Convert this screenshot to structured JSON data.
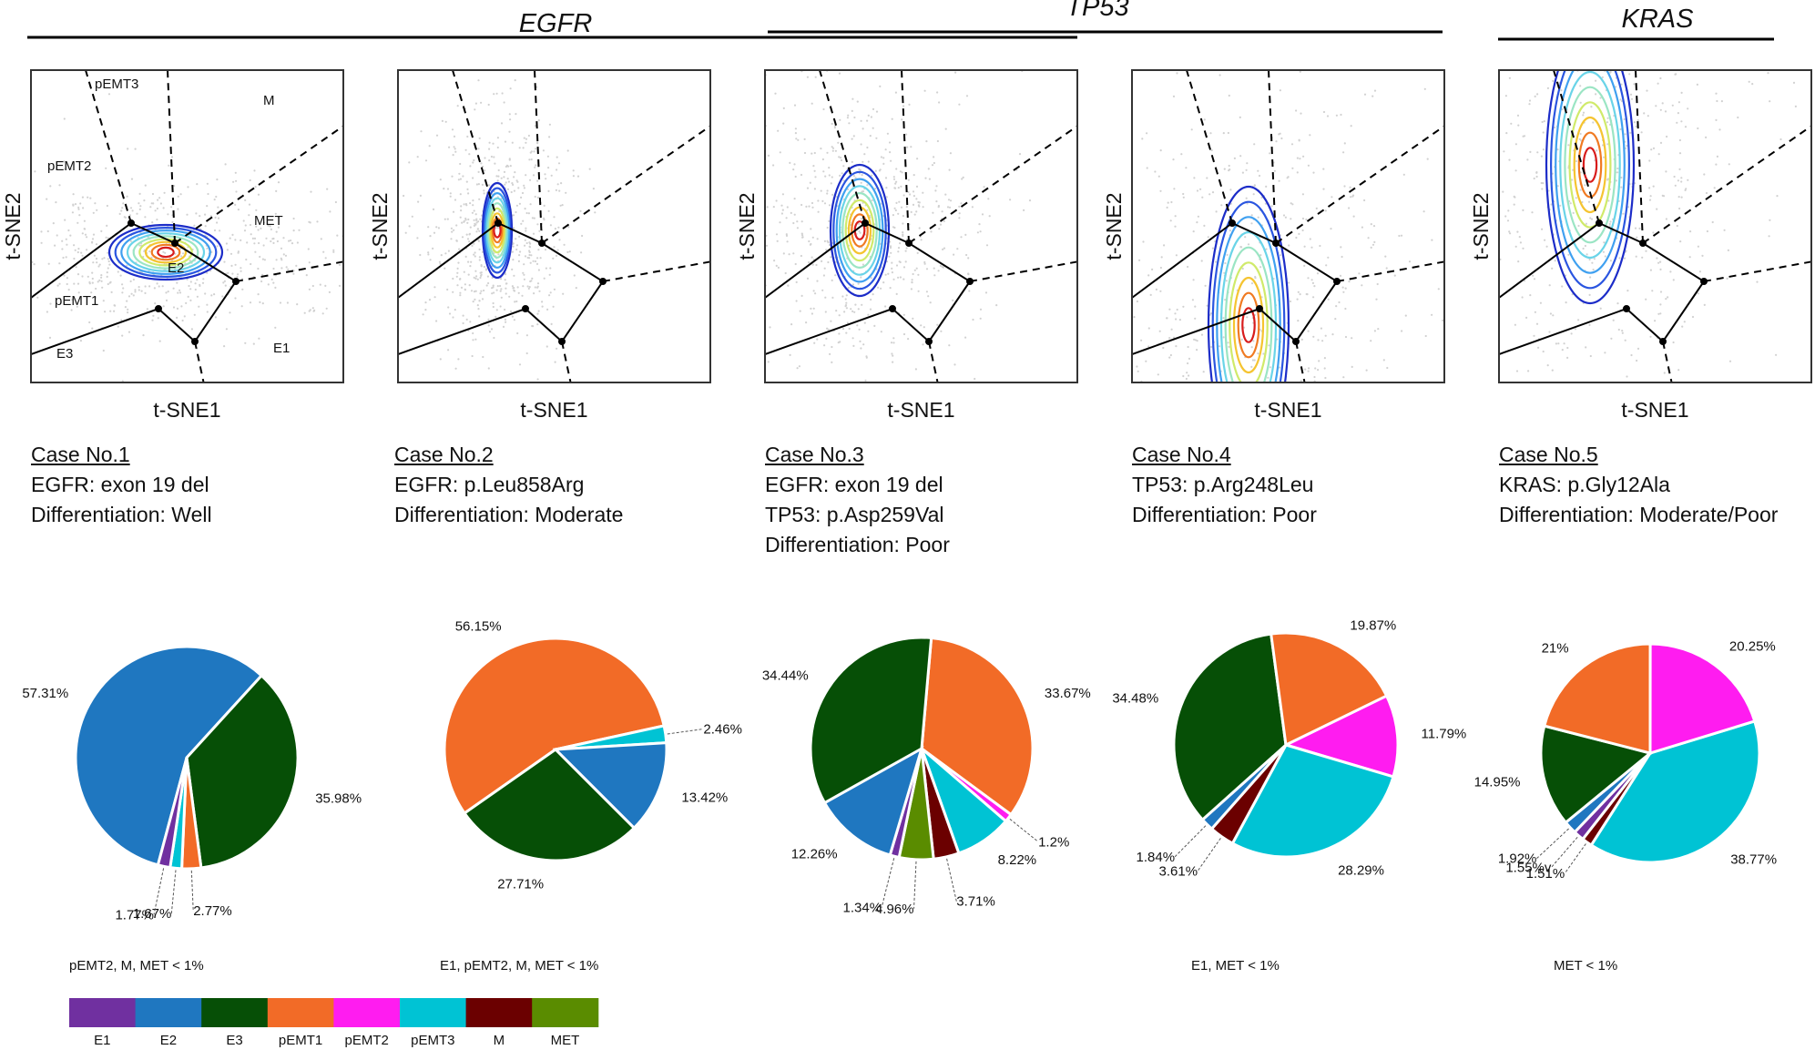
{
  "gene_groups": [
    {
      "label": "EGFR"
    },
    {
      "label": "TP53"
    },
    {
      "label": "KRAS"
    }
  ],
  "tsne_panels": [
    {
      "xlabel": "t-SNE1",
      "ylabel": "t-SNE2",
      "regions": [
        "pEMT3",
        "M",
        "pEMT2",
        "MET",
        "E2",
        "pEMT1",
        "E3",
        "E1"
      ]
    },
    {
      "xlabel": "t-SNE1",
      "ylabel": "t-SNE2"
    },
    {
      "xlabel": "t-SNE1",
      "ylabel": "t-SNE2"
    },
    {
      "xlabel": "t-SNE1",
      "ylabel": "t-SNE2"
    },
    {
      "xlabel": "t-SNE1",
      "ylabel": "t-SNE2"
    }
  ],
  "cases": [
    {
      "title": "Case No.1",
      "lines": [
        "EGFR: exon 19 del",
        "Differentiation: Well"
      ],
      "note": "pEMT2, M, MET < 1%"
    },
    {
      "title": "Case No.2",
      "lines": [
        "EGFR: p.Leu858Arg",
        "Differentiation: Moderate"
      ],
      "note": "E1, pEMT2, M, MET < 1%"
    },
    {
      "title": "Case No.3",
      "lines": [
        "EGFR: exon 19 del",
        "TP53: p.Asp259Val",
        "Differentiation: Poor"
      ],
      "note": ""
    },
    {
      "title": "Case No.4",
      "lines": [
        "TP53: p.Arg248Leu",
        "Differentiation: Poor"
      ],
      "note": "E1, MET < 1%"
    },
    {
      "title": "Case No.5",
      "lines": [
        "KRAS: p.Gly12Ala",
        "Differentiation: Moderate/Poor"
      ],
      "note": "MET < 1%"
    }
  ],
  "legend": [
    {
      "label": "E1",
      "color": "#7030a0"
    },
    {
      "label": "E2",
      "color": "#1f77c0"
    },
    {
      "label": "E3",
      "color": "#064f06"
    },
    {
      "label": "pEMT1",
      "color": "#f26b27"
    },
    {
      "label": "pEMT2",
      "color": "#ff1cf0"
    },
    {
      "label": "pEMT3",
      "color": "#00c3d4"
    },
    {
      "label": "M",
      "color": "#6b0000"
    },
    {
      "label": "MET",
      "color": "#5a8c00"
    }
  ],
  "chart_data": [
    {
      "type": "pie",
      "title": "Case No.1",
      "slices": [
        {
          "category": "E2",
          "value": 57.31,
          "label": "57.31%"
        },
        {
          "category": "E3",
          "value": 35.98,
          "label": "35.98%"
        },
        {
          "category": "pEMT1",
          "value": 2.77,
          "label": "2.77%"
        },
        {
          "category": "pEMT3",
          "value": 1.67,
          "label": "1.67%"
        },
        {
          "category": "E1",
          "value": 1.77,
          "label": "1.77%"
        }
      ]
    },
    {
      "type": "pie",
      "title": "Case No.2",
      "slices": [
        {
          "category": "pEMT1",
          "value": 56.15,
          "label": "56.15%"
        },
        {
          "category": "pEMT3",
          "value": 2.46,
          "label": "2.46%"
        },
        {
          "category": "E2",
          "value": 13.42,
          "label": "13.42%"
        },
        {
          "category": "E3",
          "value": 27.71,
          "label": "27.71%"
        }
      ]
    },
    {
      "type": "pie",
      "title": "Case No.3",
      "slices": [
        {
          "category": "pEMT1",
          "value": 33.67,
          "label": "33.67%"
        },
        {
          "category": "pEMT2",
          "value": 1.2,
          "label": "1.2%"
        },
        {
          "category": "pEMT3",
          "value": 8.22,
          "label": "8.22%"
        },
        {
          "category": "M",
          "value": 3.71,
          "label": "3.71%"
        },
        {
          "category": "MET",
          "value": 4.96,
          "label": "4.96%"
        },
        {
          "category": "E1",
          "value": 1.34,
          "label": "1.34%"
        },
        {
          "category": "E2",
          "value": 12.26,
          "label": "12.26%"
        },
        {
          "category": "E3",
          "value": 34.44,
          "label": "34.44%"
        }
      ]
    },
    {
      "type": "pie",
      "title": "Case No.4",
      "slices": [
        {
          "category": "pEMT2",
          "value": 11.79,
          "label": "11.79%"
        },
        {
          "category": "pEMT3",
          "value": 28.29,
          "label": "28.29%"
        },
        {
          "category": "M",
          "value": 3.61,
          "label": "3.61%"
        },
        {
          "category": "E2",
          "value": 1.84,
          "label": "1.84%"
        },
        {
          "category": "E3",
          "value": 34.48,
          "label": "34.48%"
        },
        {
          "category": "pEMT1",
          "value": 19.87,
          "label": "19.87%"
        }
      ]
    },
    {
      "type": "pie",
      "title": "Case No.5",
      "slices": [
        {
          "category": "pEMT3",
          "value": 38.77,
          "label": "38.77%"
        },
        {
          "category": "M",
          "value": 1.51,
          "label": "1.51%"
        },
        {
          "category": "E1",
          "value": 1.55,
          "label": "1.55%v"
        },
        {
          "category": "E2",
          "value": 1.92,
          "label": "1.92%"
        },
        {
          "category": "E3",
          "value": 14.95,
          "label": "14.95%"
        },
        {
          "category": "pEMT1",
          "value": 21,
          "label": "21%"
        },
        {
          "category": "pEMT2",
          "value": 20.25,
          "label": "20.25%"
        }
      ]
    }
  ]
}
